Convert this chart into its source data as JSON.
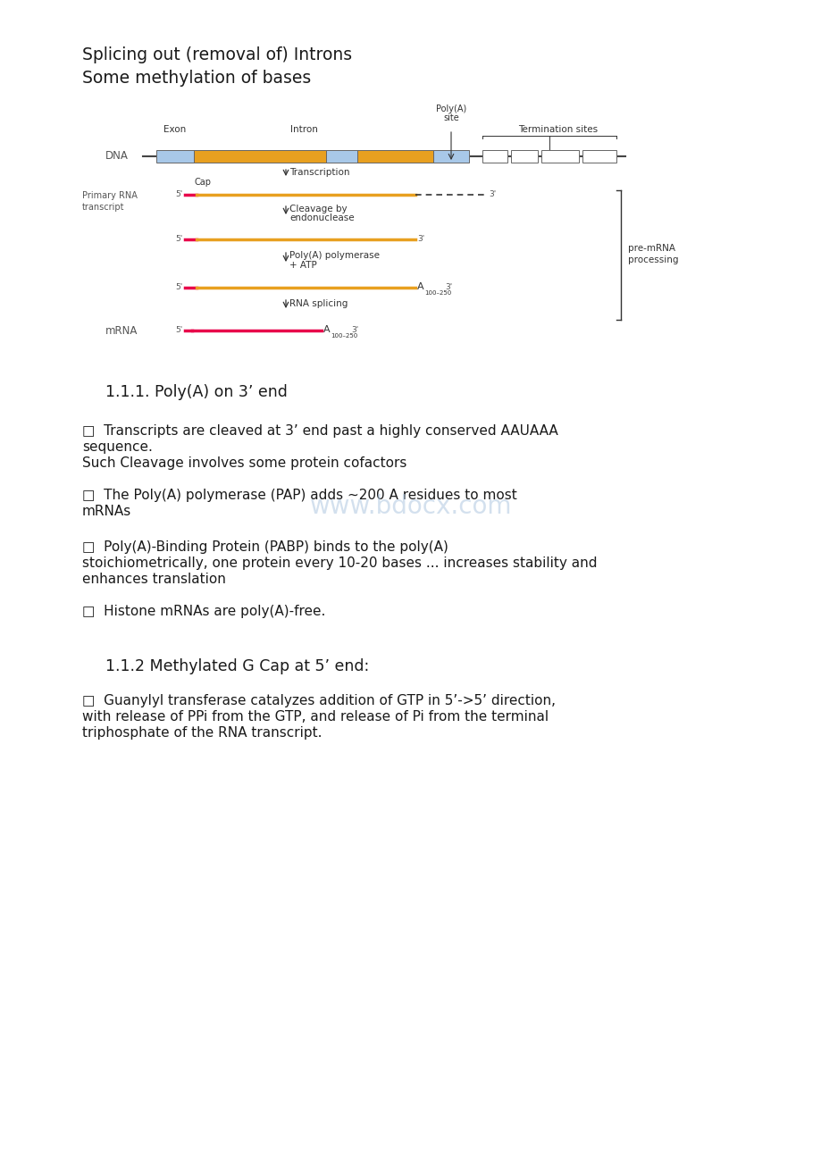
{
  "title_line1": "Splicing out (removal of) Introns",
  "title_line2": "Some methylation of bases",
  "section_111": "1.1.1. Poly(A) on 3’ end",
  "bullet1a": "□  Transcripts are cleaved at 3’ end past a highly conserved AAUAAA",
  "bullet1b": "sequence.",
  "bullet1c": "Such Cleavage involves some protein cofactors",
  "bullet2a": "□  The Poly(A) polymerase (PAP) adds ~200 A residues to most",
  "bullet2b": "mRNAs",
  "watermark": "www.bdocx.com",
  "bullet3a": "□  Poly(A)-Binding Protein (PABP) binds to the poly(A)",
  "bullet3b": "stoichiometrically, one protein every 10-20 bases ... increases stability and",
  "bullet3c": "enhances translation",
  "bullet4": "□  Histone mRNAs are poly(A)-free.",
  "section_112": "1.1.2 Methylated G Cap at 5’ end:",
  "bullet5a": "□  Guanylyl transferase catalyzes addition of GTP in 5’->5’ direction,",
  "bullet5b": "with release of PPi from the GTP, and release of Pi from the terminal",
  "bullet5c": "triphosphate of the RNA transcript.",
  "bg_color": "#ffffff",
  "text_color": "#1a1a1a",
  "gray_text": "#555555",
  "dark_text": "#333333",
  "diagram": {
    "exon_color": "#A8C8E8",
    "intron_color": "#E8A020",
    "rna_orange": "#E8A020",
    "rna_pink": "#E8004A",
    "rna_magenta": "#E8004A"
  }
}
